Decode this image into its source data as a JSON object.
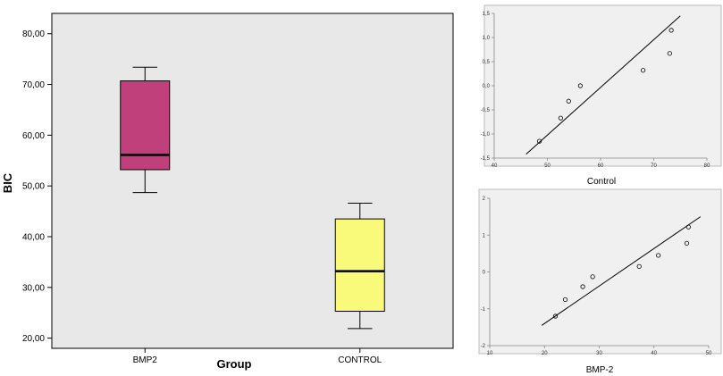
{
  "chart_data": [
    {
      "type": "box",
      "title": "",
      "xlabel": "Group",
      "ylabel": "BIC",
      "categories": [
        "BMP2",
        "CONTROL"
      ],
      "boxes": [
        {
          "category": "BMP2",
          "whisker_low": 48.7,
          "q1": 53.2,
          "median": 56.1,
          "q3": 70.7,
          "whisker_high": 73.4,
          "color": "#c0407c"
        },
        {
          "category": "CONTROL",
          "whisker_low": 21.9,
          "q1": 25.3,
          "median": 33.2,
          "q3": 43.5,
          "whisker_high": 46.6,
          "color": "#fafa7a"
        }
      ],
      "yticks": [
        "20,00",
        "30,00",
        "40,00",
        "50,00",
        "60,00",
        "70,00",
        "80,00"
      ],
      "ylim": [
        18,
        84
      ],
      "grid": false,
      "background": "#e8e8e8"
    },
    {
      "type": "scatter",
      "subtitle": "Control",
      "xticks": [
        "40",
        "50",
        "60",
        "70",
        "80"
      ],
      "yticks": [
        "1,5",
        "1,0",
        "0,5",
        "0,0",
        "-0,5",
        "-1,0",
        "-1,5"
      ],
      "xlim": [
        40,
        80
      ],
      "ylim": [
        -1.5,
        1.5
      ],
      "points": [
        {
          "x": 48.5,
          "y": -1.15
        },
        {
          "x": 52.5,
          "y": -0.67
        },
        {
          "x": 54,
          "y": -0.32
        },
        {
          "x": 56.2,
          "y": 0.0
        },
        {
          "x": 68,
          "y": 0.32
        },
        {
          "x": 73,
          "y": 0.67
        },
        {
          "x": 73.3,
          "y": 1.15
        }
      ],
      "line": {
        "x": [
          46,
          75
        ],
        "y": [
          -1.42,
          1.45
        ]
      },
      "background": "#f0f0f0"
    },
    {
      "type": "scatter",
      "subtitle": "BMP-2",
      "xticks": [
        "10",
        "20",
        "30",
        "40",
        "50"
      ],
      "yticks": [
        "2",
        "1",
        "0",
        "-1",
        "-2"
      ],
      "xlim": [
        10,
        50
      ],
      "ylim": [
        -2,
        2
      ],
      "points": [
        {
          "x": 22,
          "y": -1.2
        },
        {
          "x": 23.8,
          "y": -0.75
        },
        {
          "x": 27,
          "y": -0.4
        },
        {
          "x": 28.8,
          "y": -0.13
        },
        {
          "x": 37.3,
          "y": 0.15
        },
        {
          "x": 40.8,
          "y": 0.45
        },
        {
          "x": 46,
          "y": 0.78
        },
        {
          "x": 46.3,
          "y": 1.22
        }
      ],
      "line": {
        "x": [
          19.5,
          48.5
        ],
        "y": [
          -1.45,
          1.5
        ]
      },
      "background": "#f0f0f0"
    }
  ]
}
